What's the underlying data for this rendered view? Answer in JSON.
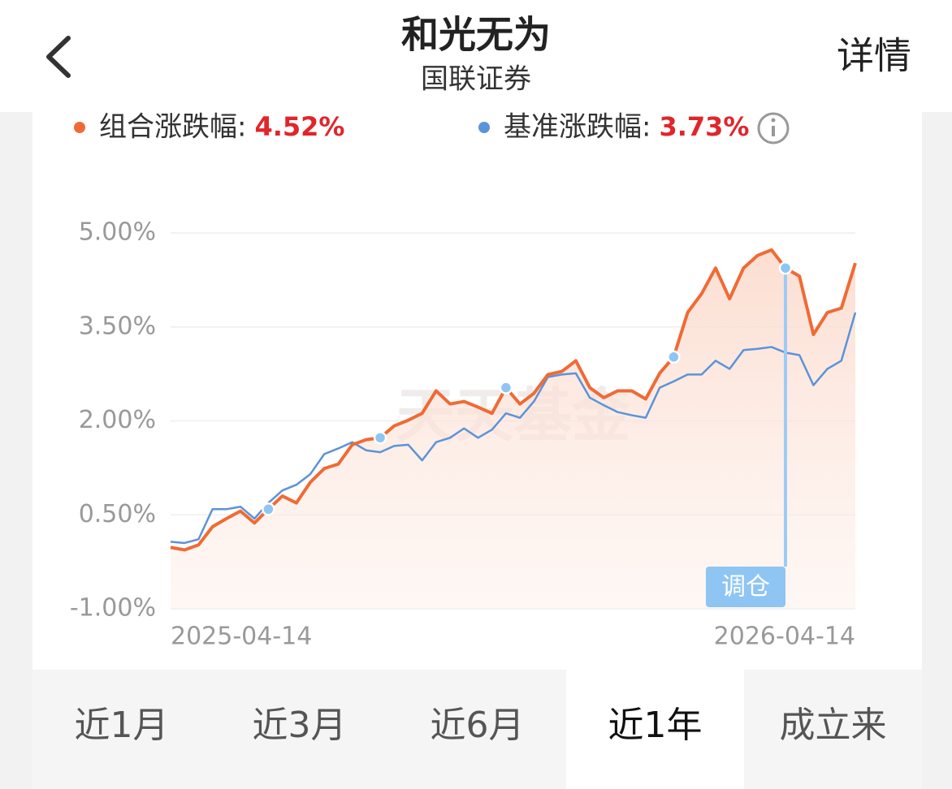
{
  "header": {
    "title": "和光无为",
    "subtitle": "国联证券",
    "action": "详情"
  },
  "chart_data": {
    "type": "line",
    "series": [
      {
        "name": "组合涨跌幅:",
        "color": "#f06a35",
        "summary": {
          "value": 4.52,
          "label": "4.52%"
        },
        "values": [
          -0.02,
          -0.06,
          0.02,
          0.31,
          0.44,
          0.56,
          0.37,
          0.59,
          0.8,
          0.69,
          1.02,
          1.24,
          1.31,
          1.62,
          1.7,
          1.73,
          1.92,
          2.01,
          2.12,
          2.48,
          2.27,
          2.31,
          2.22,
          2.12,
          2.53,
          2.27,
          2.44,
          2.74,
          2.79,
          2.96,
          2.53,
          2.37,
          2.48,
          2.48,
          2.35,
          2.76,
          3.02,
          3.73,
          4.03,
          4.44,
          3.95,
          4.44,
          4.64,
          4.73,
          4.44,
          4.31,
          3.38,
          3.73,
          3.8,
          4.52
        ]
      },
      {
        "name": "基准涨跌幅:",
        "color": "#5b93d9",
        "summary": {
          "value": 3.73,
          "label": "3.73%"
        },
        "values": [
          0.07,
          0.05,
          0.11,
          0.59,
          0.59,
          0.63,
          0.44,
          0.69,
          0.89,
          0.98,
          1.15,
          1.47,
          1.56,
          1.66,
          1.53,
          1.5,
          1.6,
          1.62,
          1.37,
          1.66,
          1.73,
          1.88,
          1.73,
          1.86,
          2.12,
          2.05,
          2.31,
          2.7,
          2.74,
          2.76,
          2.37,
          2.25,
          2.14,
          2.09,
          2.05,
          2.53,
          2.63,
          2.74,
          2.74,
          2.96,
          2.83,
          3.13,
          3.15,
          3.18,
          3.09,
          3.05,
          2.57,
          2.83,
          2.96,
          3.73
        ]
      }
    ],
    "markers": {
      "label": "调仓",
      "color": "#8ec5f3",
      "values": [
        null,
        null,
        null,
        null,
        null,
        null,
        null,
        0.59,
        null,
        null,
        null,
        null,
        null,
        null,
        null,
        1.73,
        null,
        null,
        null,
        null,
        null,
        null,
        null,
        null,
        2.53,
        null,
        null,
        null,
        null,
        null,
        null,
        null,
        null,
        null,
        null,
        null,
        3.02,
        null,
        null,
        null,
        null,
        null,
        null,
        null,
        4.44,
        null,
        null,
        null,
        null,
        null
      ]
    },
    "x_labels": [
      "2025-04-14",
      "2026-04-14"
    ],
    "ylim": [
      -1,
      5
    ],
    "yticks": [
      {
        "value": 5,
        "label": "5.00%"
      },
      {
        "value": 3.5,
        "label": "3.50%"
      },
      {
        "value": 2,
        "label": "2.00%"
      },
      {
        "value": 0.5,
        "label": "0.50%"
      },
      {
        "value": -1,
        "label": "-1.00%"
      }
    ],
    "grid": true,
    "watermark": "天天基金"
  },
  "tabs": {
    "items": [
      "近1月",
      "近3月",
      "近6月",
      "近1年",
      "成立来"
    ],
    "selected": 3
  }
}
